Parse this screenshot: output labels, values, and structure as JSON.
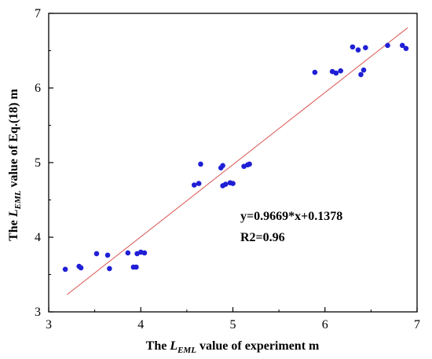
{
  "chart_data": {
    "type": "scatter",
    "xlabel": {
      "prefix": "The ",
      "symbol": "L",
      "subscript": "EML",
      "suffix": " value of experiment  m"
    },
    "ylabel": {
      "prefix": "The ",
      "symbol": "L",
      "subscript": "EML",
      "suffix": " value of Eq.(18)  m"
    },
    "xlim": [
      3,
      7
    ],
    "ylim": [
      3,
      7
    ],
    "xticks": [
      "3",
      "4",
      "5",
      "6",
      "7"
    ],
    "yticks": [
      "3",
      "4",
      "5",
      "6",
      "7"
    ],
    "grid": false,
    "marker_color": "#1f1fd6",
    "fit_color": "#d9534f",
    "annotations": [
      "y=0.9669*x+0.1378",
      "R2=0.96"
    ],
    "fit": {
      "slope": 0.9669,
      "intercept": 0.1378,
      "x_range": [
        3.2,
        6.9
      ]
    },
    "points": [
      {
        "x": 3.18,
        "y": 3.57
      },
      {
        "x": 3.33,
        "y": 3.61
      },
      {
        "x": 3.35,
        "y": 3.59
      },
      {
        "x": 3.52,
        "y": 3.78
      },
      {
        "x": 3.64,
        "y": 3.76
      },
      {
        "x": 3.66,
        "y": 3.58
      },
      {
        "x": 3.86,
        "y": 3.79
      },
      {
        "x": 3.92,
        "y": 3.6
      },
      {
        "x": 3.95,
        "y": 3.6
      },
      {
        "x": 3.96,
        "y": 3.78
      },
      {
        "x": 4.0,
        "y": 3.8
      },
      {
        "x": 4.04,
        "y": 3.79
      },
      {
        "x": 4.58,
        "y": 4.7
      },
      {
        "x": 4.63,
        "y": 4.72
      },
      {
        "x": 4.65,
        "y": 4.98
      },
      {
        "x": 4.87,
        "y": 4.93
      },
      {
        "x": 4.89,
        "y": 4.96
      },
      {
        "x": 4.89,
        "y": 4.69
      },
      {
        "x": 4.92,
        "y": 4.71
      },
      {
        "x": 4.97,
        "y": 4.73
      },
      {
        "x": 5.0,
        "y": 4.72
      },
      {
        "x": 5.12,
        "y": 4.95
      },
      {
        "x": 5.16,
        "y": 4.97
      },
      {
        "x": 5.18,
        "y": 4.98
      },
      {
        "x": 5.89,
        "y": 6.21
      },
      {
        "x": 6.08,
        "y": 6.22
      },
      {
        "x": 6.12,
        "y": 6.2
      },
      {
        "x": 6.17,
        "y": 6.23
      },
      {
        "x": 6.3,
        "y": 6.55
      },
      {
        "x": 6.36,
        "y": 6.51
      },
      {
        "x": 6.39,
        "y": 6.18
      },
      {
        "x": 6.42,
        "y": 6.24
      },
      {
        "x": 6.44,
        "y": 6.54
      },
      {
        "x": 6.68,
        "y": 6.57
      },
      {
        "x": 6.84,
        "y": 6.57
      },
      {
        "x": 6.88,
        "y": 6.53
      }
    ]
  }
}
